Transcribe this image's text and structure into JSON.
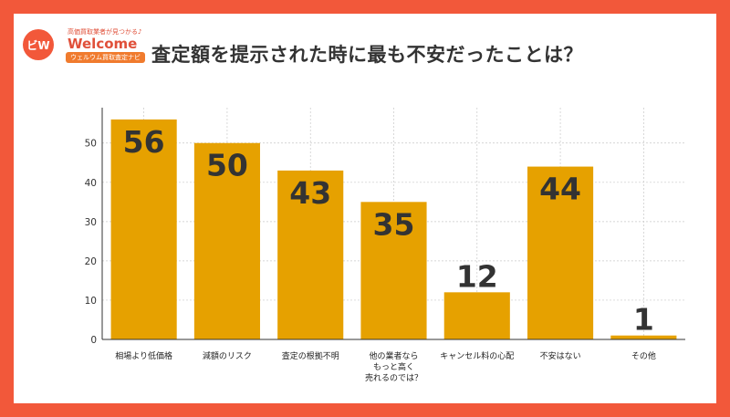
{
  "title": "査定額を提示された時に最も不安だったことは？",
  "logo": {
    "tagline": "高価買取業者が見つかる♪",
    "wordmark": "Welcome",
    "subtitle": "ウェルウム買取査定ナビ"
  },
  "colors": {
    "frame": "#f2583a",
    "bar": "#e6a100",
    "value_label": "#333333"
  },
  "chart_data": {
    "type": "bar",
    "title": "査定額を提示された時に最も不安だったことは？",
    "xlabel": "",
    "ylabel": "",
    "categories": [
      "相場より低価格",
      "減額のリスク",
      "査定の根拠不明",
      "他の業者なら\nもっと高く\n売れるのでは？",
      "キャンセル料の心配",
      "不安はない",
      "その他"
    ],
    "values": [
      56,
      50,
      43,
      35,
      12,
      44,
      1
    ],
    "ylim": [
      0,
      59
    ],
    "yticks": [
      0,
      10,
      20,
      30,
      40,
      50
    ],
    "grid": true,
    "legend": "none"
  }
}
